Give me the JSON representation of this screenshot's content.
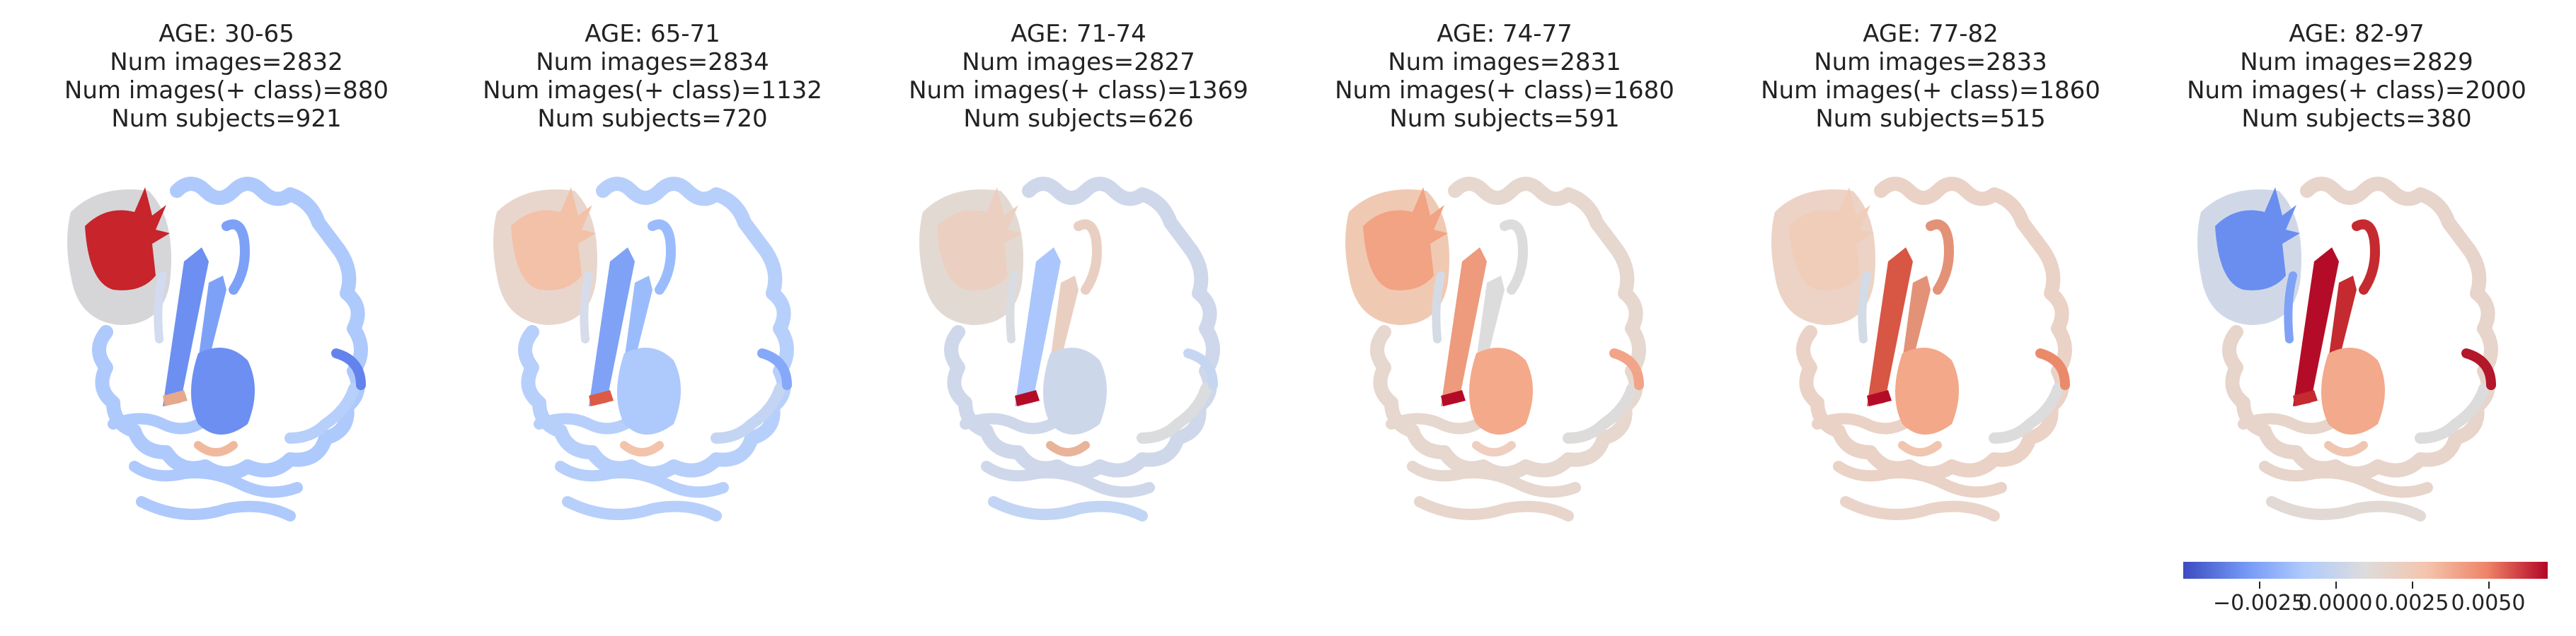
{
  "panels": [
    {
      "age": "AGE: 30-65",
      "images": "Num images=2832",
      "pos": "Num images(+ class)=880",
      "subjects": "Num subjects=921",
      "colors": {
        "outer": "#aec9fc",
        "frontal": "#d6d6d9",
        "frontal_core": "#c7242b",
        "insula_a": "#6c8ff1",
        "insula_b": "#7da1f6",
        "thalamus": "#6c8ff1",
        "putamen": "#e7a98b",
        "hippo": "#f0b99d",
        "temporal": "#aec9fc",
        "occipital": "#b7cffb",
        "patch": "#6482ec",
        "cingulate": "#d2dbef"
      }
    },
    {
      "age": "AGE: 65-71",
      "images": "Num images=2834",
      "pos": "Num images(+ class)=1132",
      "subjects": "Num subjects=720",
      "colors": {
        "outer": "#b7cffb",
        "frontal": "#e8d6cd",
        "frontal_core": "#f3c1a7",
        "insula_a": "#7fa2f7",
        "insula_b": "#9bbcfc",
        "thalamus": "#aec9fc",
        "putamen": "#dd5a44",
        "hippo": "#f2c4ab",
        "temporal": "#b7cffb",
        "occipital": "#c4d5f3",
        "patch": "#86a8f8",
        "cingulate": "#d6dce9"
      }
    },
    {
      "age": "AGE: 71-74",
      "images": "Num images=2827",
      "pos": "Num images(+ class)=1369",
      "subjects": "Num subjects=626",
      "colors": {
        "outer": "#cfd8ea",
        "frontal": "#e3d9d3",
        "frontal_core": "#ebcfc1",
        "insula_a": "#aac6fc",
        "insula_b": "#e9cfc2",
        "thalamus": "#cdd7ea",
        "putamen": "#b40c28",
        "hippo": "#e9b39a",
        "temporal": "#c2d5f4",
        "occipital": "#dbdcde",
        "patch": "#c6d6f1",
        "cingulate": "#d9dce1"
      }
    },
    {
      "age": "AGE: 74-77",
      "images": "Num images=2831",
      "pos": "Num images(+ class)=1680",
      "subjects": "Num subjects=591",
      "colors": {
        "outer": "#e6d7cf",
        "frontal": "#f0c9b3",
        "frontal_core": "#f2a384",
        "insula_a": "#ee9a7c",
        "insula_b": "#dcdcdc",
        "thalamus": "#f4a98a",
        "putamen": "#b40c28",
        "hippo": "#efcfbf",
        "temporal": "#e8d6cc",
        "occipital": "#dedbdb",
        "patch": "#f1a488",
        "cingulate": "#d5dbe5"
      }
    },
    {
      "age": "AGE: 77-82",
      "images": "Num images=2833",
      "pos": "Num images(+ class)=1860",
      "subjects": "Num subjects=515",
      "colors": {
        "outer": "#ead2c6",
        "frontal": "#ecd3c5",
        "frontal_core": "#f0cdb9",
        "insula_a": "#d85644",
        "insula_b": "#e39277",
        "thalamus": "#f3a88a",
        "putamen": "#b40c28",
        "hippo": "#f0c6b1",
        "temporal": "#ead4c9",
        "occipital": "#dddcdc",
        "patch": "#ea8a6b",
        "cingulate": "#d3dbe7"
      }
    },
    {
      "age": "AGE: 82-97",
      "images": "Num images=2829",
      "pos": "Num images(+ class)=2000",
      "subjects": "Num subjects=380",
      "colors": {
        "outer": "#e7d4ca",
        "frontal": "#d0d8e8",
        "frontal_core": "#6a8df0",
        "insula_a": "#b40c28",
        "insula_b": "#c42a2f",
        "thalamus": "#f3a98b",
        "putamen": "#c42a2f",
        "hippo": "#f0c6b2",
        "temporal": "#e2d9d4",
        "occipital": "#dcdcdc",
        "patch": "#b2172a",
        "cingulate": "#7fa2f7"
      }
    }
  ],
  "colorbar": {
    "cmap": "coolwarm",
    "ticks": [
      "−0.0025",
      "0.0000",
      "0.0025",
      "0.0050"
    ]
  }
}
